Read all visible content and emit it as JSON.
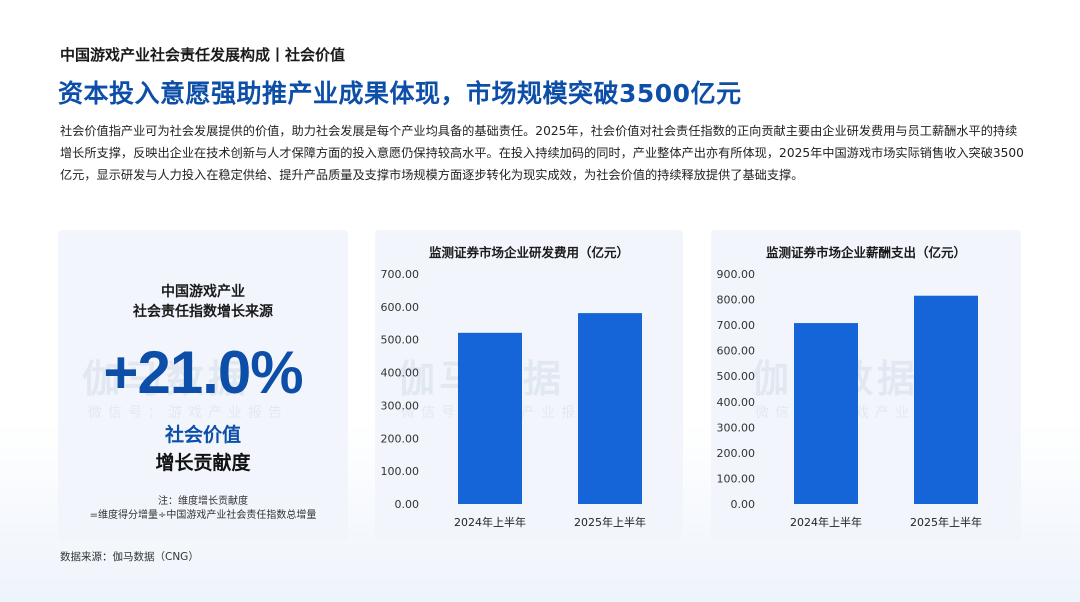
{
  "header": {
    "subtitle": "中国游戏产业社会责任发展构成丨社会价值",
    "headline": "资本投入意愿强助推产业成果体现，市场规模突破3500亿元",
    "intro": "社会价值指产业可为社会发展提供的价值，助力社会发展是每个产业均具备的基础责任。2025年，社会价值对社会责任指数的正向贡献主要由企业研发费用与员工薪酬水平的持续增长所支撑，反映出企业在技术创新与人才保障方面的投入意愿仍保持较高水平。在投入持续加码的同时，产业整体产出亦有所体现，2025年中国游戏市场实际销售收入突破3500亿元，显示研发与人力投入在稳定供给、提升产品质量及支撑市场规模方面逐步转化为现实成效，为社会价值的持续释放提供了基础支撑。"
  },
  "kpi": {
    "title_line1": "中国游戏产业",
    "title_line2": "社会责任指数增长来源",
    "value": "+21.0%",
    "label_line1": "社会价值",
    "label_line2": "增长贡献度",
    "note_line1": "注：维度增长贡献度",
    "note_line2": "=维度得分增量÷中国游戏产业社会责任指数总增量"
  },
  "watermark": {
    "main": "伽马数据",
    "sub": "微信号：游戏产业报告"
  },
  "source": "数据来源：伽马数据（CNG）",
  "colors": {
    "bar": "#1565d8",
    "accent": "#0d4fa8"
  },
  "chart_data": [
    {
      "type": "bar",
      "title": "监测证券市场企业研发费用（亿元）",
      "categories": [
        "2024年上半年",
        "2025年上半年"
      ],
      "values": [
        521,
        581
      ],
      "ylim": [
        0,
        700
      ],
      "yticks": [
        0,
        100,
        200,
        300,
        400,
        500,
        600,
        700
      ],
      "ytick_labels": [
        "0.00",
        "100.00",
        "200.00",
        "300.00",
        "400.00",
        "500.00",
        "600.00",
        "700.00"
      ],
      "grid": false
    },
    {
      "type": "bar",
      "title": "监测证券市场企业薪酬支出（亿元）",
      "categories": [
        "2024年上半年",
        "2025年上半年"
      ],
      "values": [
        708,
        815
      ],
      "ylim": [
        0,
        900
      ],
      "yticks": [
        0,
        100,
        200,
        300,
        400,
        500,
        600,
        700,
        800,
        900
      ],
      "ytick_labels": [
        "0.00",
        "100.00",
        "200.00",
        "300.00",
        "400.00",
        "500.00",
        "600.00",
        "700.00",
        "800.00",
        "900.00"
      ],
      "grid": false
    }
  ]
}
